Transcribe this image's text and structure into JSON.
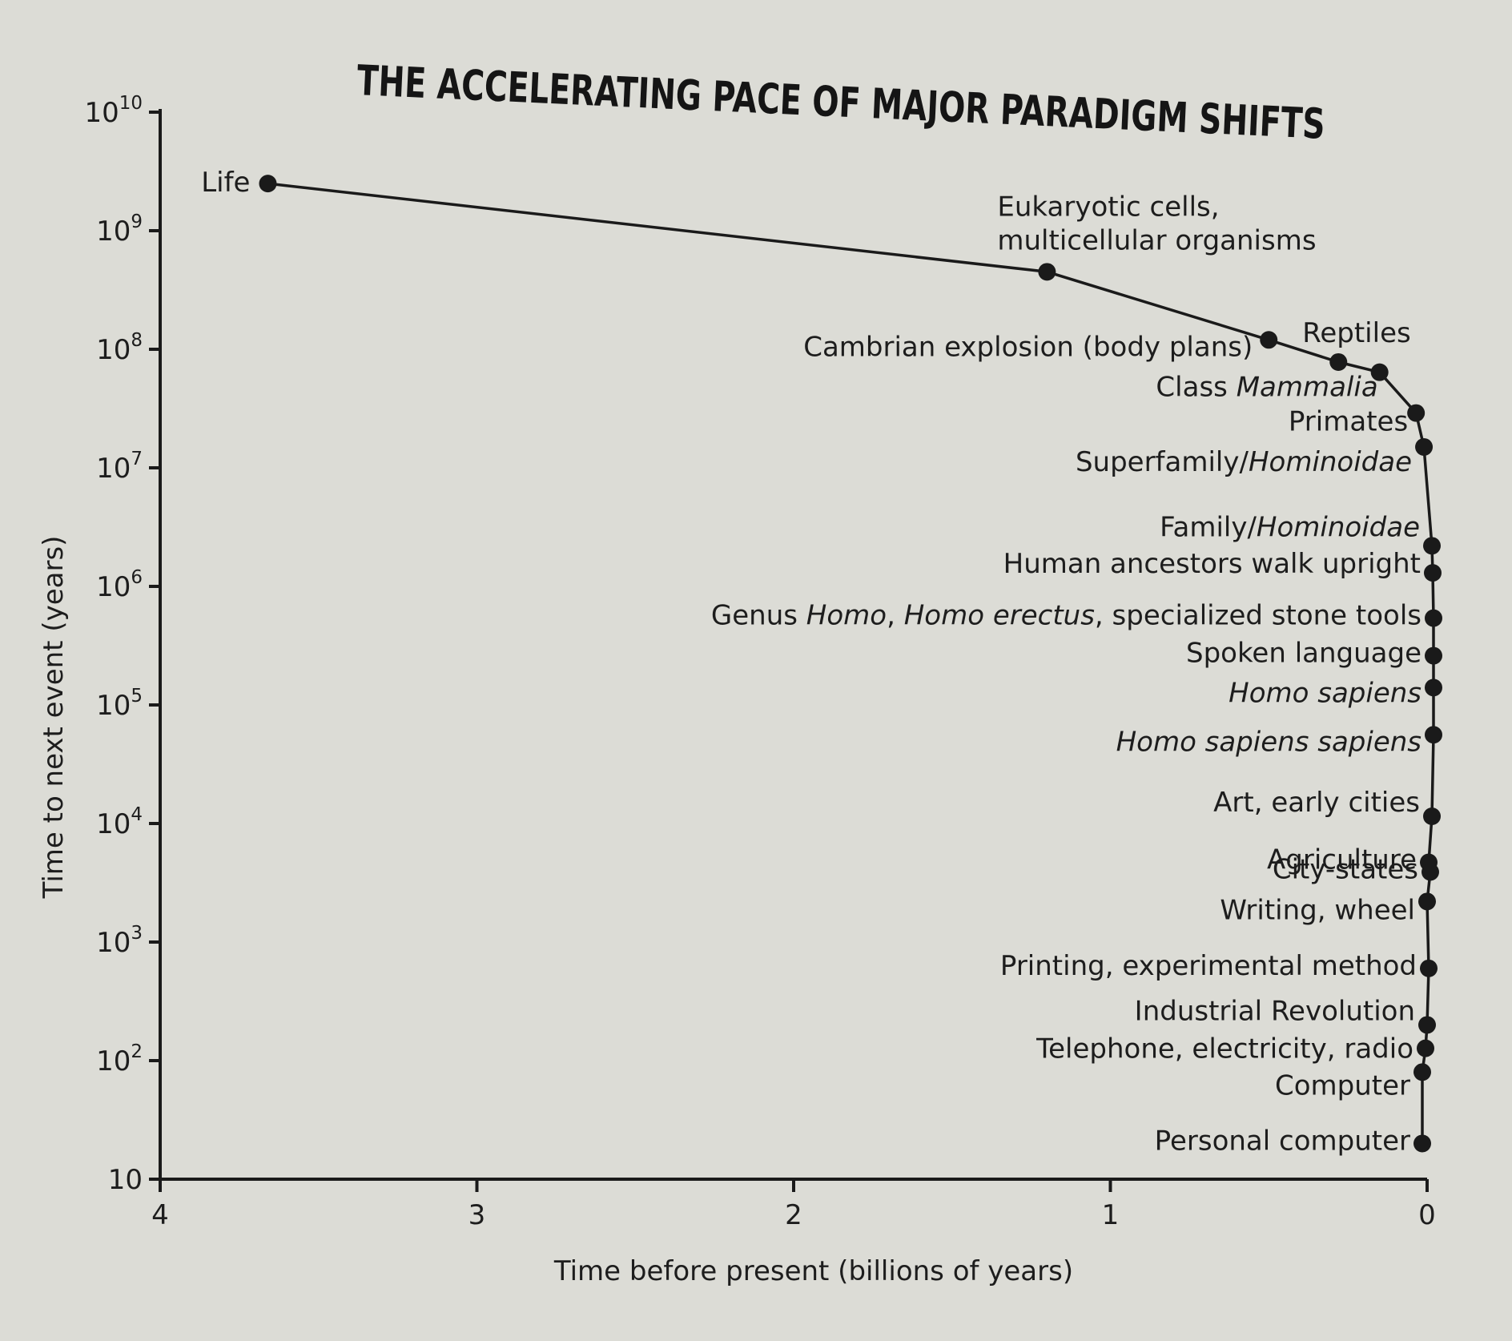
{
  "chart_data": {
    "type": "line",
    "title": "THE ACCELERATING PACE OF MAJOR PARADIGM SHIFTS",
    "xlabel": "Time before present (billions of years)",
    "ylabel": "Time to next event (years)",
    "x_ticks": [
      "4",
      "3",
      "2",
      "1",
      "0"
    ],
    "y_ticks": [
      {
        "base": "10",
        "exp": "10"
      },
      {
        "base": "10",
        "exp": "9"
      },
      {
        "base": "10",
        "exp": "8"
      },
      {
        "base": "10",
        "exp": "7"
      },
      {
        "base": "10",
        "exp": "6"
      },
      {
        "base": "10",
        "exp": "5"
      },
      {
        "base": "10",
        "exp": "4"
      },
      {
        "base": "10",
        "exp": "3"
      },
      {
        "base": "10",
        "exp": "2"
      },
      {
        "base": "10",
        "exp": ""
      }
    ],
    "xlim": [
      4,
      0
    ],
    "ylim": [
      10,
      10000000000
    ],
    "y_scale": "log",
    "grid": false,
    "legend": "none",
    "series": [
      {
        "points": [
          {
            "label": [
              {
                "t": "Life"
              }
            ],
            "x": 3.66,
            "y": 2500000000
          },
          {
            "label": [
              {
                "t": "Eukaryotic cells,"
              }
            ],
            "label2": [
              {
                "t": "multicellular organisms"
              }
            ],
            "x": 1.2,
            "y": 450000000
          },
          {
            "label": [
              {
                "t": "Cambrian explosion (body plans)"
              }
            ],
            "x": 0.5,
            "y": 120000000
          },
          {
            "label": [
              {
                "t": "Reptiles"
              }
            ],
            "x": 0.28,
            "y": 78000000
          },
          {
            "label": [
              {
                "t": "Class "
              },
              {
                "t": "Mammalia",
                "i": true
              }
            ],
            "x": 0.15,
            "y": 64000000
          },
          {
            "label": [
              {
                "t": "Primates"
              }
            ],
            "x": 0.035,
            "y": 29000000
          },
          {
            "label": [
              {
                "t": "Superfamily/"
              },
              {
                "t": "Hominoidae",
                "i": true
              }
            ],
            "x": 0.01,
            "y": 15000000
          },
          {
            "label": [
              {
                "t": "Family/"
              },
              {
                "t": "Hominoidae",
                "i": true
              }
            ],
            "x": 0.0,
            "y": 2200000
          },
          {
            "label": [
              {
                "t": "Human ancestors walk upright"
              }
            ],
            "x": 0.0,
            "y": 1300000
          },
          {
            "label": [
              {
                "t": "Genus "
              },
              {
                "t": "Homo",
                "i": true
              },
              {
                "t": ", "
              },
              {
                "t": "Homo erectus",
                "i": true
              },
              {
                "t": ", specialized stone tools"
              }
            ],
            "x": 0.0,
            "y": 540000
          },
          {
            "label": [
              {
                "t": "Spoken language"
              }
            ],
            "x": 0.0,
            "y": 260000
          },
          {
            "label": [
              {
                "t": "Homo sapiens",
                "i": true
              }
            ],
            "x": 0.0,
            "y": 140000
          },
          {
            "label": [
              {
                "t": "Homo sapiens sapiens",
                "i": true
              }
            ],
            "x": 0.0,
            "y": 56000
          },
          {
            "label": [
              {
                "t": "Art, early cities"
              }
            ],
            "x": 0.0,
            "y": 11500
          },
          {
            "label": [
              {
                "t": "Agriculture"
              }
            ],
            "x": 0.0,
            "y": 4700
          },
          {
            "label": [
              {
                "t": "City-states"
              }
            ],
            "x": 0.0,
            "y": 3900
          },
          {
            "label": [
              {
                "t": "Writing, wheel"
              }
            ],
            "x": 0.0,
            "y": 2200
          },
          {
            "label": [
              {
                "t": "Printing, experimental method"
              }
            ],
            "x": 0.0,
            "y": 600
          },
          {
            "label": [
              {
                "t": "Industrial Revolution"
              }
            ],
            "x": 0.0,
            "y": 200
          },
          {
            "label": [
              {
                "t": "Telephone, electricity, radio"
              }
            ],
            "x": 0.0,
            "y": 127
          },
          {
            "label": [
              {
                "t": "Computer"
              }
            ],
            "x": 0.0,
            "y": 80
          },
          {
            "label": [
              {
                "t": "Personal computer"
              }
            ],
            "x": 0.0,
            "y": 20
          }
        ]
      }
    ]
  }
}
